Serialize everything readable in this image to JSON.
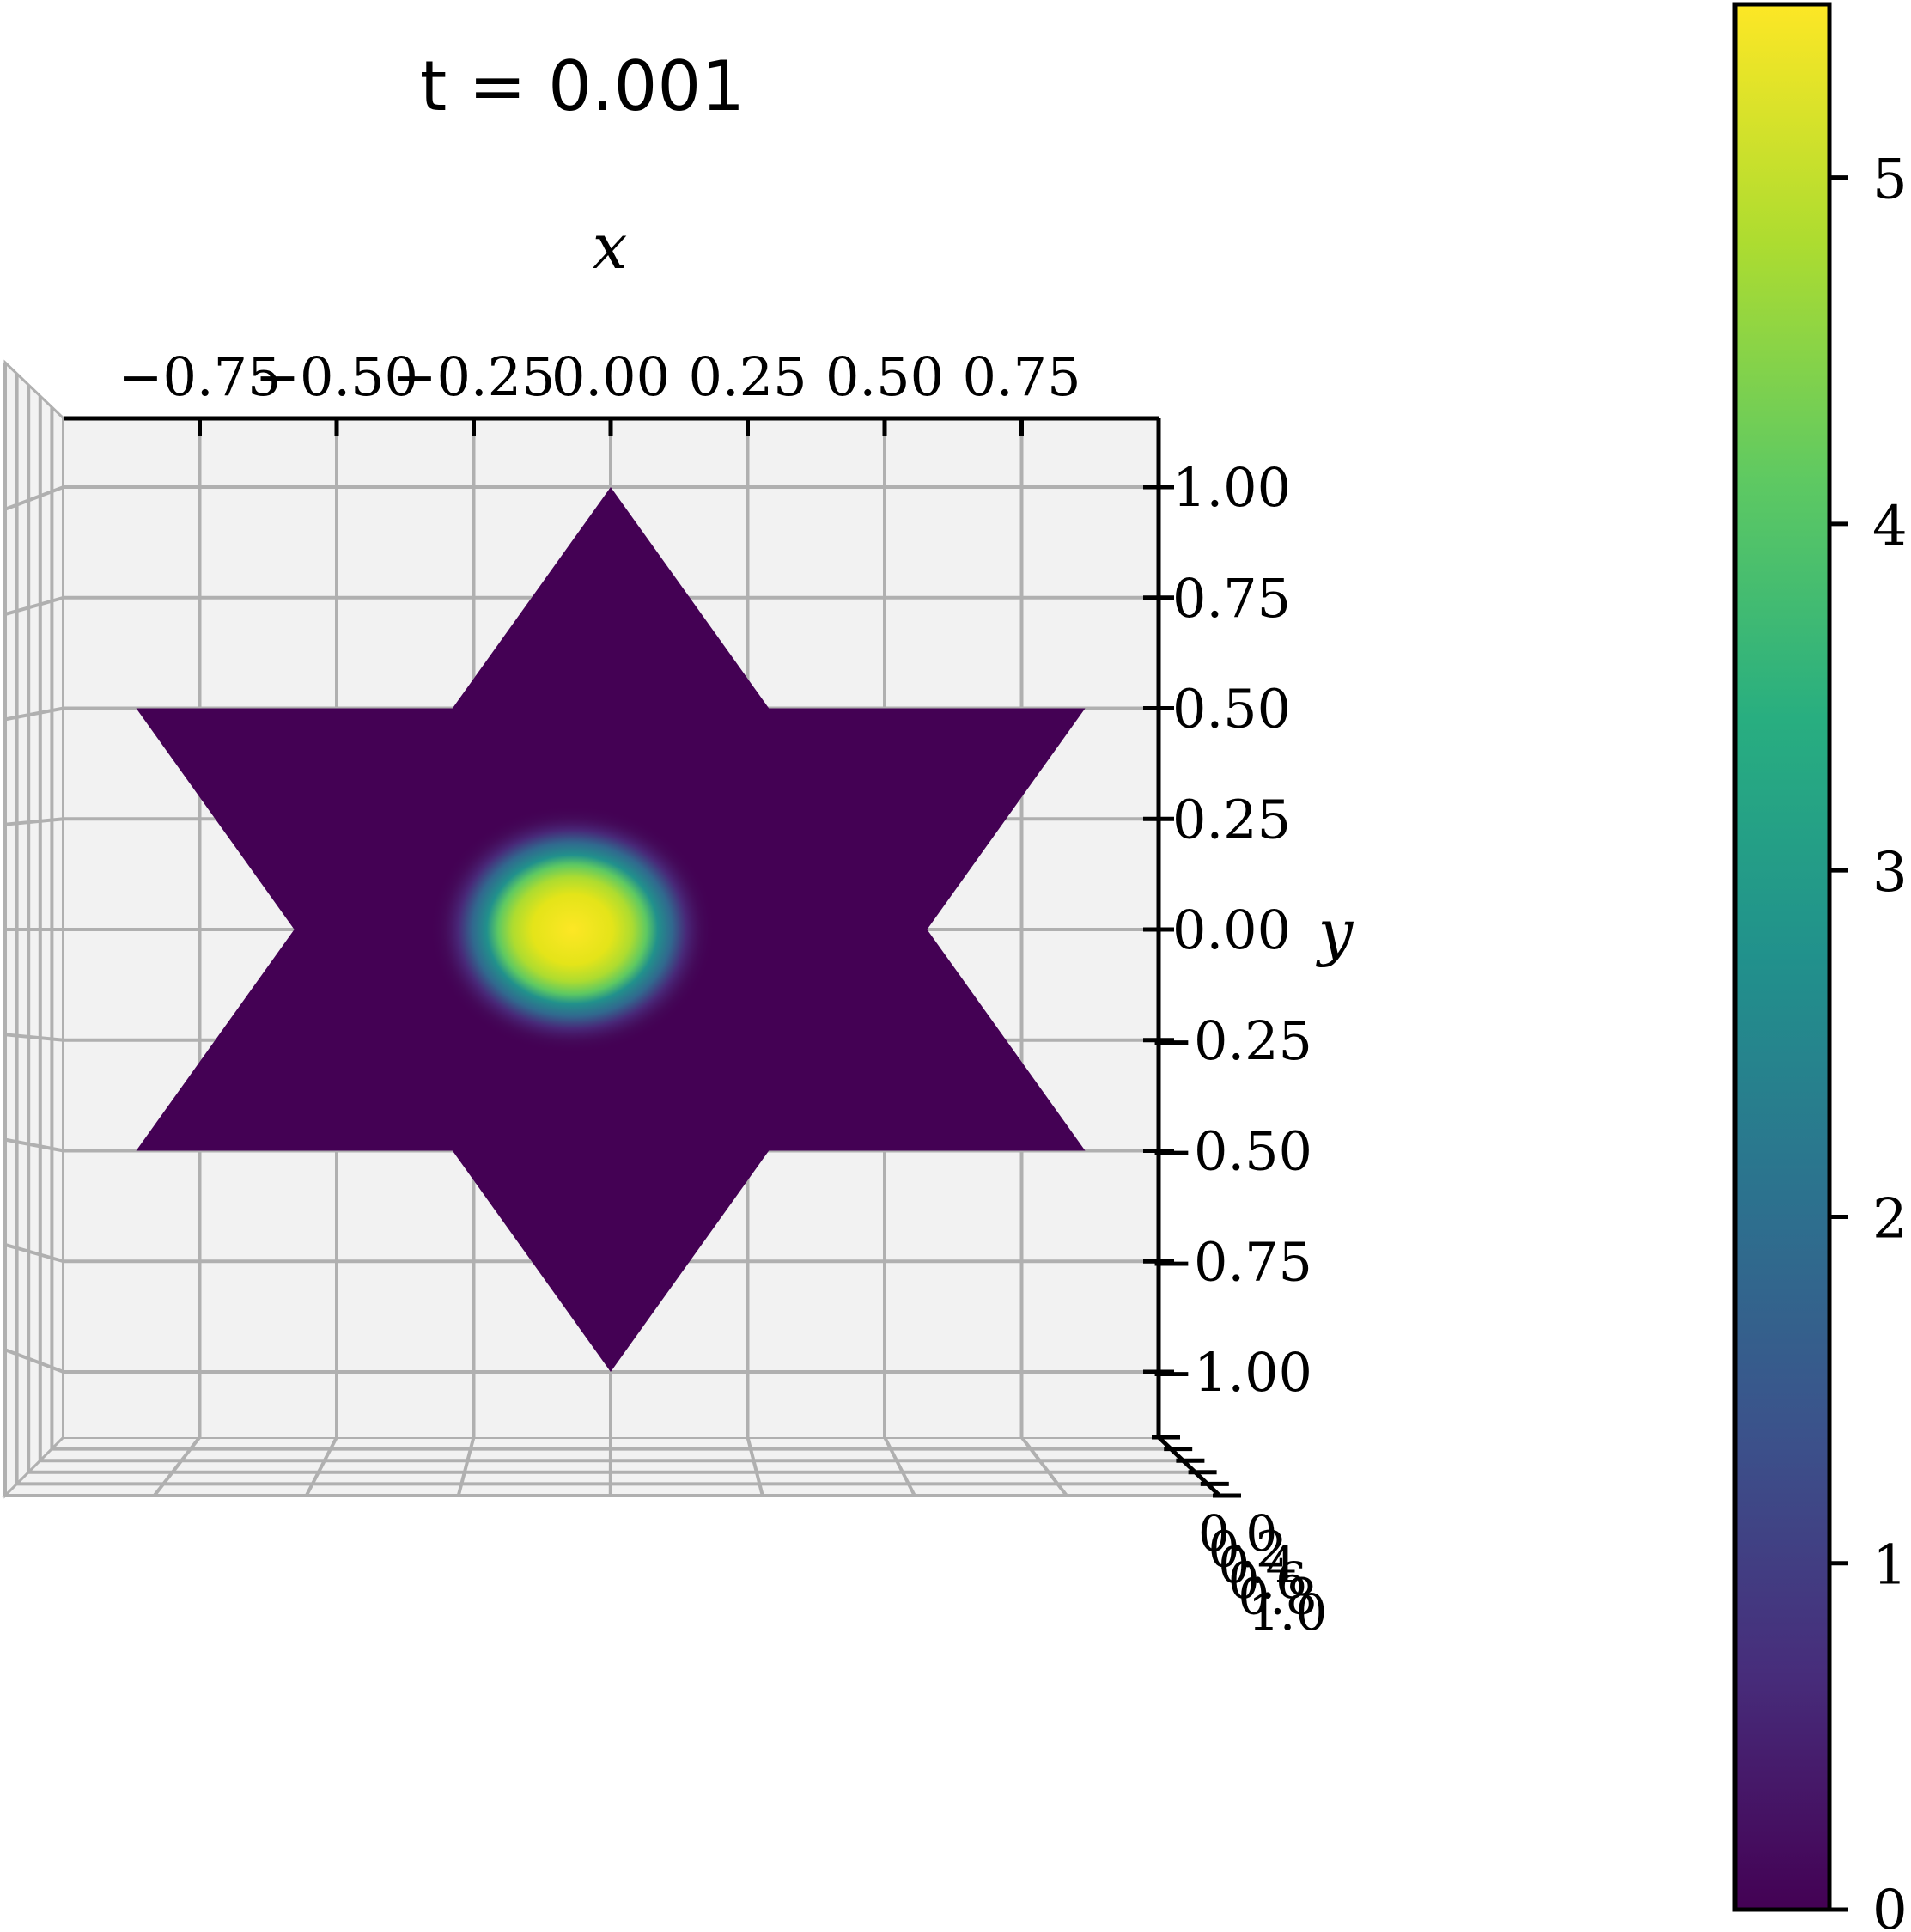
{
  "chart_data": {
    "type": "surface3d",
    "title": "t = 0.001",
    "xlabel": "x",
    "ylabel": "y",
    "xticks": [
      "−0.75",
      "−0.50",
      "−0.25",
      "0.00",
      "0.25",
      "0.50",
      "0.75"
    ],
    "yticks": [
      "1.00",
      "0.75",
      "0.50",
      "0.25",
      "0.00",
      "−0.25",
      "−0.50",
      "−0.75",
      "−1.00"
    ],
    "zticks": [
      "0.0",
      "0.2",
      "0.4",
      "0.6",
      "0.8",
      "1.0"
    ],
    "xlim": [
      -1.0,
      1.0
    ],
    "ylim": [
      -1.15,
      1.15
    ],
    "domain": "six-pointed star (hexagram), outer vertices at radius 1",
    "star_vertices": [
      [
        0,
        1.0
      ],
      [
        -0.2887,
        0.5
      ],
      [
        -0.866,
        0.5
      ],
      [
        -0.5774,
        0.0
      ],
      [
        -0.866,
        -0.5
      ],
      [
        -0.2887,
        -0.5
      ],
      [
        0,
        -1.0
      ],
      [
        0.2887,
        -0.5
      ],
      [
        0.866,
        -0.5
      ],
      [
        0.5774,
        0.0
      ],
      [
        0.866,
        0.5
      ],
      [
        0.2887,
        0.5
      ]
    ],
    "peak": {
      "x": -0.07,
      "y": 0.0,
      "value": 5.45,
      "sigma_x": 0.13,
      "sigma_y": 0.11
    },
    "baseline_value": 0.0,
    "colormap": "viridis",
    "colorbar": {
      "min": 0,
      "max": 5.5,
      "ticks": [
        "0",
        "1",
        "2",
        "3",
        "4",
        "5"
      ]
    },
    "colors": {
      "low": "#440154",
      "mid": "#21918c",
      "high": "#fde725",
      "pane": "#f2f2f2",
      "grid": "#b0b0b0"
    }
  }
}
